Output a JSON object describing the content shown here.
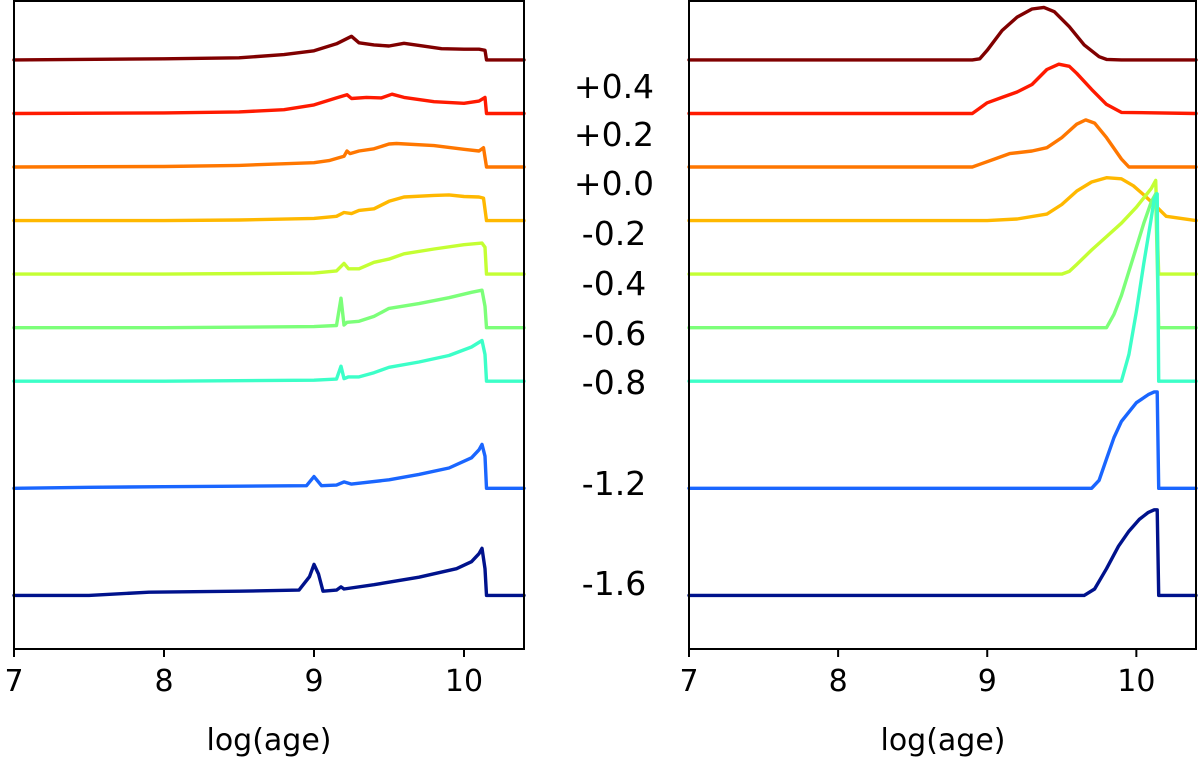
{
  "chart_data": [
    {
      "type": "line",
      "panel": "left",
      "xlabel": "log(age)",
      "ylabel": "",
      "xlim": [
        7,
        10.4
      ],
      "xticks": [
        "7",
        "8",
        "9",
        "10"
      ],
      "series": [
        {
          "name": "+0.4",
          "color": "#800000",
          "offset": 0.0,
          "x": [
            7.0,
            8.0,
            8.5,
            8.8,
            9.0,
            9.15,
            9.25,
            9.3,
            9.4,
            9.5,
            9.6,
            9.7,
            9.85,
            10.0,
            10.1,
            10.14,
            10.15,
            10.4
          ],
          "y": [
            0.0,
            0.02,
            0.04,
            0.1,
            0.17,
            0.3,
            0.44,
            0.32,
            0.28,
            0.26,
            0.31,
            0.27,
            0.21,
            0.2,
            0.2,
            0.18,
            0.0,
            0.0
          ]
        },
        {
          "name": "+0.2",
          "color": "#ff1a00",
          "offset": 1.0,
          "x": [
            7.0,
            8.0,
            8.5,
            8.8,
            9.0,
            9.15,
            9.22,
            9.25,
            9.35,
            9.45,
            9.52,
            9.6,
            9.8,
            10.0,
            10.1,
            10.14,
            10.15,
            10.4
          ],
          "y": [
            0.0,
            0.01,
            0.03,
            0.07,
            0.16,
            0.29,
            0.35,
            0.28,
            0.3,
            0.29,
            0.36,
            0.3,
            0.22,
            0.19,
            0.23,
            0.3,
            0.0,
            0.0
          ]
        },
        {
          "name": "+0.0",
          "color": "#ff7700",
          "offset": 2.0,
          "x": [
            7.0,
            8.0,
            8.5,
            9.0,
            9.1,
            9.2,
            9.22,
            9.24,
            9.3,
            9.4,
            9.5,
            9.55,
            9.8,
            10.0,
            10.1,
            10.13,
            10.15,
            10.4
          ],
          "y": [
            0.0,
            0.01,
            0.03,
            0.08,
            0.12,
            0.2,
            0.3,
            0.25,
            0.3,
            0.34,
            0.43,
            0.44,
            0.4,
            0.33,
            0.3,
            0.36,
            0.0,
            0.0
          ]
        },
        {
          "name": "-0.2",
          "color": "#ffb800",
          "offset": 3.0,
          "x": [
            7.0,
            8.0,
            8.5,
            9.0,
            9.15,
            9.2,
            9.25,
            9.3,
            9.4,
            9.5,
            9.6,
            9.8,
            9.9,
            10.0,
            10.1,
            10.13,
            10.15,
            10.4
          ],
          "y": [
            0.0,
            0.0,
            0.01,
            0.04,
            0.08,
            0.15,
            0.13,
            0.19,
            0.22,
            0.36,
            0.44,
            0.47,
            0.48,
            0.45,
            0.44,
            0.42,
            0.0,
            0.0
          ]
        },
        {
          "name": "-0.4",
          "color": "#c4ff33",
          "offset": 4.0,
          "x": [
            7.0,
            8.0,
            9.0,
            9.15,
            9.2,
            9.23,
            9.3,
            9.4,
            9.5,
            9.6,
            9.8,
            10.0,
            10.12,
            10.14,
            10.15,
            10.4
          ],
          "y": [
            0.0,
            0.0,
            0.02,
            0.06,
            0.2,
            0.1,
            0.1,
            0.22,
            0.28,
            0.38,
            0.47,
            0.55,
            0.58,
            0.5,
            0.0,
            0.0
          ]
        },
        {
          "name": "-0.6",
          "color": "#7cff79",
          "offset": 5.0,
          "x": [
            7.0,
            8.0,
            9.0,
            9.15,
            9.18,
            9.2,
            9.22,
            9.3,
            9.4,
            9.5,
            9.7,
            9.9,
            10.05,
            10.12,
            10.14,
            10.15,
            10.4
          ],
          "y": [
            0.0,
            0.0,
            0.02,
            0.04,
            0.55,
            0.05,
            0.1,
            0.12,
            0.21,
            0.36,
            0.45,
            0.56,
            0.66,
            0.7,
            0.4,
            0.0,
            0.0
          ]
        },
        {
          "name": "-0.8",
          "color": "#3cffc8",
          "offset": 6.0,
          "x": [
            7.0,
            8.0,
            9.0,
            9.15,
            9.18,
            9.2,
            9.23,
            9.3,
            9.4,
            9.5,
            9.7,
            9.9,
            10.05,
            10.12,
            10.14,
            10.15,
            10.4
          ],
          "y": [
            0.0,
            0.0,
            0.02,
            0.04,
            0.28,
            0.05,
            0.08,
            0.08,
            0.16,
            0.26,
            0.36,
            0.48,
            0.64,
            0.76,
            0.5,
            0.0,
            0.0
          ]
        },
        {
          "name": "-1.2",
          "color": "#1a66ff",
          "offset": 8.0,
          "x": [
            7.0,
            7.5,
            8.0,
            8.5,
            8.95,
            9.0,
            9.05,
            9.15,
            9.2,
            9.25,
            9.5,
            9.7,
            9.9,
            10.05,
            10.1,
            10.12,
            10.14,
            10.15,
            10.4
          ],
          "y": [
            0.0,
            0.02,
            0.03,
            0.04,
            0.05,
            0.22,
            0.05,
            0.06,
            0.12,
            0.08,
            0.16,
            0.26,
            0.38,
            0.57,
            0.72,
            0.82,
            0.6,
            0.0,
            0.0
          ]
        },
        {
          "name": "-1.6",
          "color": "#00128c",
          "offset": 10.0,
          "x": [
            7.0,
            7.5,
            7.9,
            8.5,
            8.9,
            8.97,
            9.0,
            9.03,
            9.06,
            9.15,
            9.18,
            9.2,
            9.4,
            9.7,
            9.95,
            10.05,
            10.1,
            10.12,
            10.14,
            10.15,
            10.4
          ],
          "y": [
            0.0,
            0.0,
            0.06,
            0.08,
            0.1,
            0.35,
            0.58,
            0.4,
            0.08,
            0.1,
            0.16,
            0.12,
            0.2,
            0.34,
            0.5,
            0.63,
            0.78,
            0.88,
            0.5,
            0.0,
            0.0
          ]
        }
      ],
      "ylim": [
        -1.1,
        11.0
      ]
    },
    {
      "type": "line",
      "panel": "right",
      "xlabel": "log(age)",
      "ylabel": "",
      "xlim": [
        7,
        10.4
      ],
      "xticks": [
        "7",
        "8",
        "9",
        "10"
      ],
      "series": [
        {
          "name": "+0.4",
          "color": "#800000",
          "offset": 0.0,
          "x": [
            7.0,
            8.9,
            8.95,
            9.0,
            9.1,
            9.2,
            9.3,
            9.38,
            9.45,
            9.55,
            9.65,
            9.75,
            9.8,
            9.9,
            10.4
          ],
          "y": [
            0.0,
            0.0,
            0.02,
            0.18,
            0.55,
            0.8,
            0.95,
            0.98,
            0.9,
            0.62,
            0.28,
            0.06,
            0.01,
            0.0,
            0.0
          ]
        },
        {
          "name": "+0.2",
          "color": "#ff1a00",
          "offset": 1.0,
          "x": [
            7.0,
            8.9,
            8.95,
            9.0,
            9.1,
            9.2,
            9.3,
            9.4,
            9.48,
            9.55,
            9.6,
            9.7,
            9.8,
            9.9,
            10.4
          ],
          "y": [
            0.0,
            0.0,
            0.1,
            0.2,
            0.3,
            0.4,
            0.54,
            0.82,
            0.92,
            0.88,
            0.75,
            0.45,
            0.17,
            0.02,
            0.0
          ]
        },
        {
          "name": "+0.0",
          "color": "#ff7700",
          "offset": 2.0,
          "x": [
            7.0,
            8.9,
            8.95,
            9.05,
            9.15,
            9.3,
            9.4,
            9.5,
            9.6,
            9.66,
            9.72,
            9.8,
            9.9,
            9.95,
            10.4
          ],
          "y": [
            0.0,
            0.0,
            0.05,
            0.15,
            0.25,
            0.3,
            0.36,
            0.55,
            0.8,
            0.88,
            0.82,
            0.55,
            0.15,
            0.0,
            0.0
          ]
        },
        {
          "name": "-0.2",
          "color": "#ffb800",
          "offset": 3.0,
          "x": [
            7.0,
            9.0,
            9.2,
            9.4,
            9.5,
            9.6,
            9.7,
            9.8,
            9.9,
            9.98,
            10.05,
            10.12,
            10.2,
            10.4
          ],
          "y": [
            0.0,
            0.0,
            0.03,
            0.12,
            0.3,
            0.55,
            0.72,
            0.8,
            0.78,
            0.65,
            0.48,
            0.3,
            0.08,
            0.0
          ]
        },
        {
          "name": "-0.4",
          "color": "#c4ff33",
          "offset": 4.0,
          "x": [
            7.0,
            9.5,
            9.55,
            9.6,
            9.7,
            9.8,
            9.9,
            10.0,
            10.1,
            10.13,
            10.15,
            10.4
          ],
          "y": [
            0.0,
            0.0,
            0.05,
            0.18,
            0.45,
            0.7,
            0.95,
            1.25,
            1.6,
            1.75,
            0.0,
            0.0
          ]
        },
        {
          "name": "-0.6",
          "color": "#7cff79",
          "offset": 5.0,
          "x": [
            7.0,
            9.8,
            9.85,
            9.9,
            9.95,
            10.0,
            10.05,
            10.1,
            10.13,
            10.15,
            10.4
          ],
          "y": [
            0.0,
            0.0,
            0.25,
            0.6,
            1.05,
            1.5,
            1.95,
            2.35,
            2.5,
            0.0,
            0.0
          ]
        },
        {
          "name": "-0.8",
          "color": "#3cffc8",
          "offset": 6.0,
          "x": [
            7.0,
            9.9,
            9.95,
            10.0,
            10.05,
            10.1,
            10.12,
            10.14,
            10.15,
            10.4
          ],
          "y": [
            0.0,
            0.0,
            0.5,
            1.3,
            2.2,
            3.05,
            3.4,
            3.5,
            0.0,
            0.0
          ]
        },
        {
          "name": "-1.2",
          "color": "#1a66ff",
          "offset": 8.0,
          "x": [
            7.0,
            9.7,
            9.75,
            9.8,
            9.85,
            9.9,
            10.0,
            10.08,
            10.12,
            10.14,
            10.15,
            10.4
          ],
          "y": [
            0.0,
            0.0,
            0.15,
            0.55,
            0.95,
            1.25,
            1.6,
            1.75,
            1.8,
            1.8,
            0.0,
            0.0
          ]
        },
        {
          "name": "-1.6",
          "color": "#00128c",
          "offset": 10.0,
          "x": [
            7.0,
            9.65,
            9.72,
            9.8,
            9.88,
            9.95,
            10.02,
            10.08,
            10.12,
            10.14,
            10.15,
            10.4
          ],
          "y": [
            0.0,
            0.0,
            0.12,
            0.5,
            0.92,
            1.2,
            1.42,
            1.55,
            1.6,
            1.6,
            0.0,
            0.0
          ]
        }
      ],
      "ylim": [
        -1.1,
        11.0
      ]
    }
  ],
  "metallicity_labels": [
    "+0.4",
    "+0.2",
    "+0.0",
    "-0.2",
    "-0.4",
    "-0.6",
    "-0.8",
    "-1.2",
    "-1.6"
  ]
}
